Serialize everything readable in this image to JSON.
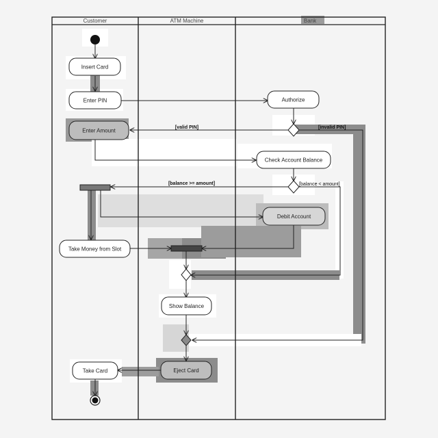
{
  "lanes": {
    "customer": "Customer",
    "atm": "ATM Machine",
    "bank": "Bank"
  },
  "actions": {
    "insert_card": "Insert Card",
    "enter_pin": "Enter PIN",
    "authorize": "Authorize",
    "enter_amount": "Enter Amount",
    "check_balance": "Check Account Balance",
    "debit_account": "Debit Account",
    "take_money": "Take Money from Slot",
    "show_balance": "Show Balance",
    "eject_card": "Eject Card",
    "take_card": "Take Card"
  },
  "guards": {
    "valid_pin": "[valid PIN]",
    "invalid_pin": "[invalid PIN]",
    "balance_ok": "[balance >= amount]",
    "balance_low": "[balance < amount]"
  },
  "colors": {
    "background": "#f4f4f4",
    "line": "#222222",
    "highlight_dark": "#8c8c8c",
    "highlight_light": "#d6d6d6",
    "node_fill": "#ffffff",
    "node_fill_dark": "#bdbdbd"
  }
}
